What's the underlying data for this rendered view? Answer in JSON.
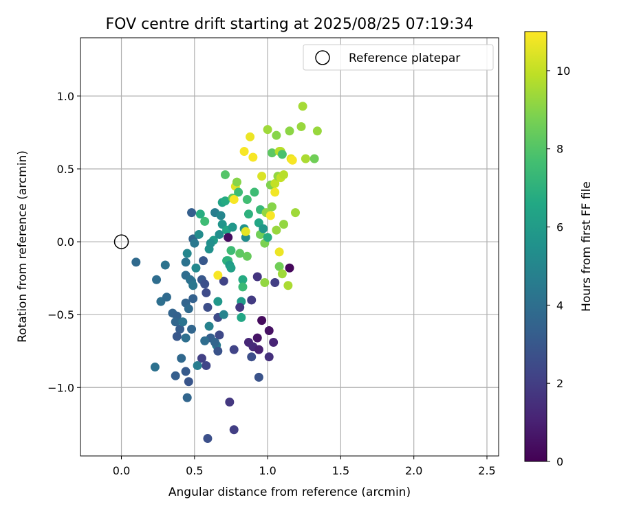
{
  "chart_data": {
    "type": "scatter",
    "title": "FOV centre drift starting at 2025/08/25 07:19:34",
    "xlabel": "Angular distance from reference (arcmin)",
    "ylabel": "Rotation from reference (arcmin)",
    "xlim": [
      -0.28,
      2.58
    ],
    "ylim": [
      -1.47,
      1.4
    ],
    "xticks": [
      0.0,
      0.5,
      1.0,
      1.5,
      2.0,
      2.5
    ],
    "yticks": [
      -1.0,
      -0.5,
      0.0,
      0.5,
      1.0
    ],
    "xtick_labels": [
      "0.0",
      "0.5",
      "1.0",
      "1.5",
      "2.0",
      "2.5"
    ],
    "ytick_labels": [
      "−1.0",
      "−0.5",
      "0.0",
      "0.5",
      "1.0"
    ],
    "grid": true,
    "legend": {
      "position": "top-right",
      "entries": [
        "Reference platepar"
      ]
    },
    "reference_point": {
      "x": 0.0,
      "y": 0.0
    },
    "colorbar": {
      "label": "Hours from first FF file",
      "colormap": "viridis",
      "range": [
        0,
        11
      ],
      "ticks": [
        0,
        2,
        4,
        6,
        8,
        10
      ],
      "tick_labels": [
        "0",
        "2",
        "4",
        "6",
        "8",
        "10"
      ]
    },
    "points": [
      {
        "x": 0.1,
        "y": -0.14,
        "h": 3.8
      },
      {
        "x": 0.24,
        "y": -0.26,
        "h": 3.9
      },
      {
        "x": 0.3,
        "y": -0.16,
        "h": 4.2
      },
      {
        "x": 0.27,
        "y": -0.41,
        "h": 4.0
      },
      {
        "x": 0.31,
        "y": -0.38,
        "h": 3.8
      },
      {
        "x": 0.23,
        "y": -0.86,
        "h": 4.1
      },
      {
        "x": 0.35,
        "y": -0.49,
        "h": 3.5
      },
      {
        "x": 0.38,
        "y": -0.51,
        "h": 3.4
      },
      {
        "x": 0.37,
        "y": -0.55,
        "h": 3.6
      },
      {
        "x": 0.4,
        "y": -0.6,
        "h": 3.2
      },
      {
        "x": 0.38,
        "y": -0.65,
        "h": 3.0
      },
      {
        "x": 0.42,
        "y": -0.55,
        "h": 4.2
      },
      {
        "x": 0.41,
        "y": -0.8,
        "h": 3.7
      },
      {
        "x": 0.37,
        "y": -0.92,
        "h": 3.3
      },
      {
        "x": 0.44,
        "y": -0.89,
        "h": 3.1
      },
      {
        "x": 0.46,
        "y": -0.96,
        "h": 2.9
      },
      {
        "x": 0.45,
        "y": -1.07,
        "h": 3.6
      },
      {
        "x": 0.48,
        "y": -0.6,
        "h": 3.6
      },
      {
        "x": 0.44,
        "y": -0.66,
        "h": 4.0
      },
      {
        "x": 0.44,
        "y": -0.42,
        "h": 3.5
      },
      {
        "x": 0.46,
        "y": -0.46,
        "h": 3.8
      },
      {
        "x": 0.49,
        "y": -0.39,
        "h": 3.4
      },
      {
        "x": 0.44,
        "y": -0.14,
        "h": 4.2
      },
      {
        "x": 0.45,
        "y": -0.08,
        "h": 5.0
      },
      {
        "x": 0.48,
        "y": -0.27,
        "h": 4.4
      },
      {
        "x": 0.44,
        "y": -0.23,
        "h": 3.9
      },
      {
        "x": 0.47,
        "y": -0.26,
        "h": 4.1
      },
      {
        "x": 0.49,
        "y": -0.3,
        "h": 4.3
      },
      {
        "x": 0.48,
        "y": 0.2,
        "h": 3.3
      },
      {
        "x": 0.49,
        "y": 0.02,
        "h": 3.6
      },
      {
        "x": 0.5,
        "y": -0.01,
        "h": 4.4
      },
      {
        "x": 0.53,
        "y": 0.05,
        "h": 5.3
      },
      {
        "x": 0.51,
        "y": -0.18,
        "h": 5.1
      },
      {
        "x": 0.54,
        "y": 0.19,
        "h": 6.8
      },
      {
        "x": 0.56,
        "y": -0.13,
        "h": 3.0
      },
      {
        "x": 0.57,
        "y": 0.14,
        "h": 7.5
      },
      {
        "x": 0.55,
        "y": -0.26,
        "h": 3.0
      },
      {
        "x": 0.57,
        "y": -0.29,
        "h": 2.7
      },
      {
        "x": 0.58,
        "y": -0.35,
        "h": 2.5
      },
      {
        "x": 0.59,
        "y": -0.45,
        "h": 2.6
      },
      {
        "x": 0.6,
        "y": -0.05,
        "h": 5.5
      },
      {
        "x": 0.6,
        "y": -0.58,
        "h": 4.8
      },
      {
        "x": 0.61,
        "y": -0.66,
        "h": 3.3
      },
      {
        "x": 0.57,
        "y": -0.68,
        "h": 3.9
      },
      {
        "x": 0.55,
        "y": -0.8,
        "h": 2.1
      },
      {
        "x": 0.58,
        "y": -0.85,
        "h": 2.3
      },
      {
        "x": 0.59,
        "y": -1.35,
        "h": 2.7
      },
      {
        "x": 0.63,
        "y": 0.01,
        "h": 6.0
      },
      {
        "x": 0.64,
        "y": 0.2,
        "h": 4.6
      },
      {
        "x": 0.65,
        "y": -0.71,
        "h": 4.5
      },
      {
        "x": 0.66,
        "y": -0.75,
        "h": 2.8
      },
      {
        "x": 0.66,
        "y": -0.41,
        "h": 5.8
      },
      {
        "x": 0.66,
        "y": -0.52,
        "h": 2.5
      },
      {
        "x": 0.67,
        "y": -0.64,
        "h": 2.4
      },
      {
        "x": 0.67,
        "y": 0.05,
        "h": 5.4
      },
      {
        "x": 0.68,
        "y": 0.18,
        "h": 5.0
      },
      {
        "x": 0.69,
        "y": 0.12,
        "h": 5.7
      },
      {
        "x": 0.7,
        "y": -0.5,
        "h": 4.9
      },
      {
        "x": 0.7,
        "y": -0.27,
        "h": 2.2
      },
      {
        "x": 0.69,
        "y": 0.27,
        "h": 6.3
      },
      {
        "x": 0.71,
        "y": 0.28,
        "h": 6.7
      },
      {
        "x": 0.71,
        "y": 0.46,
        "h": 8.0
      },
      {
        "x": 0.72,
        "y": 0.08,
        "h": 6.5
      },
      {
        "x": 0.73,
        "y": 0.03,
        "h": 0.4
      },
      {
        "x": 0.73,
        "y": -0.13,
        "h": 7.4
      },
      {
        "x": 0.72,
        "y": -0.13,
        "h": 7.0
      },
      {
        "x": 0.74,
        "y": -0.16,
        "h": 6.0
      },
      {
        "x": 0.75,
        "y": -0.06,
        "h": 7.5
      },
      {
        "x": 0.75,
        "y": -0.18,
        "h": 6.2
      },
      {
        "x": 0.76,
        "y": 0.1,
        "h": 5.8
      },
      {
        "x": 0.77,
        "y": -0.74,
        "h": 2.2
      },
      {
        "x": 0.76,
        "y": 0.3,
        "h": 8.3
      },
      {
        "x": 0.78,
        "y": 0.38,
        "h": 10.5
      },
      {
        "x": 0.79,
        "y": 0.41,
        "h": 9.0
      },
      {
        "x": 0.8,
        "y": 0.34,
        "h": 7.5
      },
      {
        "x": 0.81,
        "y": -0.08,
        "h": 8.2
      },
      {
        "x": 0.82,
        "y": -0.41,
        "h": 6.0
      },
      {
        "x": 0.82,
        "y": -0.52,
        "h": 6.5
      },
      {
        "x": 0.81,
        "y": -0.45,
        "h": 1.8
      },
      {
        "x": 0.83,
        "y": -0.26,
        "h": 6.7
      },
      {
        "x": 0.83,
        "y": -0.31,
        "h": 7.4
      },
      {
        "x": 0.84,
        "y": 0.09,
        "h": 5.6
      },
      {
        "x": 0.85,
        "y": 0.03,
        "h": 5.3
      },
      {
        "x": 0.85,
        "y": 0.07,
        "h": 10.6
      },
      {
        "x": 0.86,
        "y": -0.1,
        "h": 8.4
      },
      {
        "x": 0.86,
        "y": 0.29,
        "h": 7.6
      },
      {
        "x": 0.84,
        "y": 0.62,
        "h": 10.9
      },
      {
        "x": 0.87,
        "y": -0.69,
        "h": 1.2
      },
      {
        "x": 0.87,
        "y": 0.19,
        "h": 7.0
      },
      {
        "x": 0.88,
        "y": 0.72,
        "h": 10.7
      },
      {
        "x": 0.89,
        "y": -0.79,
        "h": 2.6
      },
      {
        "x": 0.9,
        "y": -0.72,
        "h": 1.3
      },
      {
        "x": 0.9,
        "y": 0.58,
        "h": 10.9
      },
      {
        "x": 0.91,
        "y": 0.34,
        "h": 7.5
      },
      {
        "x": 0.93,
        "y": -0.66,
        "h": 0.6
      },
      {
        "x": 0.93,
        "y": -0.24,
        "h": 1.7
      },
      {
        "x": 0.94,
        "y": 0.13,
        "h": 6.5
      },
      {
        "x": 0.94,
        "y": -0.74,
        "h": 1.0
      },
      {
        "x": 0.94,
        "y": -0.93,
        "h": 2.8
      },
      {
        "x": 0.95,
        "y": 0.22,
        "h": 7.3
      },
      {
        "x": 0.95,
        "y": 0.05,
        "h": 8.6
      },
      {
        "x": 0.96,
        "y": -0.54,
        "h": 0.3
      },
      {
        "x": 0.96,
        "y": 0.45,
        "h": 10.4
      },
      {
        "x": 0.97,
        "y": 0.09,
        "h": 5.8
      },
      {
        "x": 0.98,
        "y": -0.28,
        "h": 9.2
      },
      {
        "x": 0.98,
        "y": -0.01,
        "h": 8.8
      },
      {
        "x": 0.99,
        "y": 0.2,
        "h": 9.2
      },
      {
        "x": 1.0,
        "y": 0.77,
        "h": 9.4
      },
      {
        "x": 1.0,
        "y": 0.03,
        "h": 6.8
      },
      {
        "x": 1.01,
        "y": -0.61,
        "h": 0.5
      },
      {
        "x": 1.01,
        "y": -0.79,
        "h": 1.5
      },
      {
        "x": 1.02,
        "y": 0.18,
        "h": 10.9
      },
      {
        "x": 1.02,
        "y": 0.39,
        "h": 8.9
      },
      {
        "x": 1.03,
        "y": 0.24,
        "h": 9.0
      },
      {
        "x": 1.03,
        "y": 0.61,
        "h": 8.2
      },
      {
        "x": 1.04,
        "y": -0.69,
        "h": 1.1
      },
      {
        "x": 1.05,
        "y": -0.28,
        "h": 2.0
      },
      {
        "x": 1.05,
        "y": 0.4,
        "h": 10.0
      },
      {
        "x": 1.05,
        "y": 0.34,
        "h": 10.8
      },
      {
        "x": 1.06,
        "y": 0.73,
        "h": 9.0
      },
      {
        "x": 1.06,
        "y": 0.08,
        "h": 9.3
      },
      {
        "x": 1.07,
        "y": 0.45,
        "h": 9.2
      },
      {
        "x": 1.08,
        "y": -0.07,
        "h": 10.7
      },
      {
        "x": 1.08,
        "y": -0.17,
        "h": 8.6
      },
      {
        "x": 1.08,
        "y": 0.62,
        "h": 9.7
      },
      {
        "x": 1.09,
        "y": 0.44,
        "h": 10.0
      },
      {
        "x": 1.09,
        "y": 0.62,
        "h": 9.8
      },
      {
        "x": 1.1,
        "y": -0.22,
        "h": 9.4
      },
      {
        "x": 1.1,
        "y": 0.6,
        "h": 7.8
      },
      {
        "x": 1.11,
        "y": 0.12,
        "h": 9.2
      },
      {
        "x": 1.11,
        "y": 0.46,
        "h": 9.8
      },
      {
        "x": 1.14,
        "y": -0.3,
        "h": 9.6
      },
      {
        "x": 1.15,
        "y": -0.18,
        "h": 0.2
      },
      {
        "x": 1.15,
        "y": 0.76,
        "h": 9.1
      },
      {
        "x": 1.16,
        "y": 0.57,
        "h": 10.6
      },
      {
        "x": 1.17,
        "y": 0.56,
        "h": 10.9
      },
      {
        "x": 1.19,
        "y": 0.2,
        "h": 9.4
      },
      {
        "x": 1.23,
        "y": 0.79,
        "h": 9.3
      },
      {
        "x": 1.24,
        "y": 0.93,
        "h": 9.5
      },
      {
        "x": 1.26,
        "y": 0.57,
        "h": 9.6
      },
      {
        "x": 1.32,
        "y": 0.57,
        "h": 8.6
      },
      {
        "x": 1.34,
        "y": 0.76,
        "h": 9.3
      },
      {
        "x": 0.74,
        "y": -1.1,
        "h": 1.8
      },
      {
        "x": 0.77,
        "y": -1.29,
        "h": 2.0
      },
      {
        "x": 0.52,
        "y": -0.85,
        "h": 4.6
      },
      {
        "x": 0.64,
        "y": -0.69,
        "h": 3.5
      },
      {
        "x": 0.66,
        "y": -0.23,
        "h": 10.9
      },
      {
        "x": 0.61,
        "y": -0.01,
        "h": 5.4
      },
      {
        "x": 0.89,
        "y": -0.4,
        "h": 1.9
      },
      {
        "x": 0.77,
        "y": 0.29,
        "h": 10.9
      }
    ]
  }
}
